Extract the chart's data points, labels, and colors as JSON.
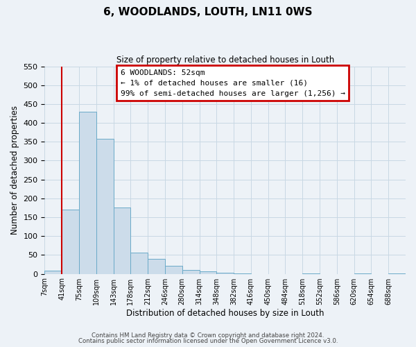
{
  "title": "6, WOODLANDS, LOUTH, LN11 0WS",
  "subtitle": "Size of property relative to detached houses in Louth",
  "xlabel": "Distribution of detached houses by size in Louth",
  "ylabel": "Number of detached properties",
  "bar_color": "#ccdcea",
  "bar_edge_color": "#6aaac8",
  "grid_color": "#c8d8e4",
  "bin_labels": [
    "7sqm",
    "41sqm",
    "75sqm",
    "109sqm",
    "143sqm",
    "178sqm",
    "212sqm",
    "246sqm",
    "280sqm",
    "314sqm",
    "348sqm",
    "382sqm",
    "416sqm",
    "450sqm",
    "484sqm",
    "518sqm",
    "552sqm",
    "586sqm",
    "620sqm",
    "654sqm",
    "688sqm"
  ],
  "bar_heights": [
    8,
    170,
    430,
    357,
    175,
    57,
    40,
    21,
    11,
    6,
    3,
    1,
    0,
    0,
    0,
    1,
    0,
    0,
    1,
    0,
    1
  ],
  "ylim": [
    0,
    550
  ],
  "yticks": [
    0,
    50,
    100,
    150,
    200,
    250,
    300,
    350,
    400,
    450,
    500,
    550
  ],
  "annotation_text": "6 WOODLANDS: 52sqm\n← 1% of detached houses are smaller (16)\n99% of semi-detached houses are larger (1,256) →",
  "annotation_box_color": "#ffffff",
  "annotation_box_edge_color": "#cc0000",
  "vline_x": 1,
  "footnote1": "Contains HM Land Registry data © Crown copyright and database right 2024.",
  "footnote2": "Contains public sector information licensed under the Open Government Licence v3.0.",
  "background_color": "#edf2f7"
}
